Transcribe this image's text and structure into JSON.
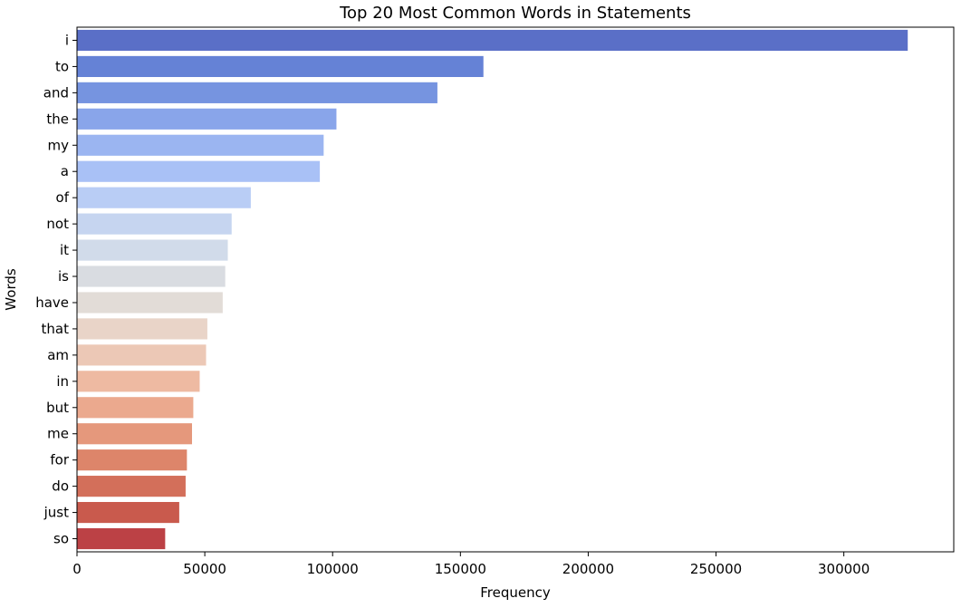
{
  "chart_data": {
    "type": "bar",
    "orientation": "horizontal",
    "title": "Top 20 Most Common Words in Statements",
    "xlabel": "Frequency",
    "ylabel": "Words",
    "categories": [
      "i",
      "to",
      "and",
      "the",
      "my",
      "a",
      "of",
      "not",
      "it",
      "is",
      "have",
      "that",
      "am",
      "in",
      "but",
      "me",
      "for",
      "do",
      "just",
      "so"
    ],
    "values": [
      325000,
      159000,
      141000,
      101500,
      96500,
      95000,
      68000,
      60500,
      59000,
      58000,
      57000,
      51000,
      50500,
      48000,
      45500,
      45000,
      43000,
      42500,
      40000,
      34500
    ],
    "colors": [
      "#5a6fc7",
      "#6582d6",
      "#7694e0",
      "#89a5ea",
      "#9bb5f1",
      "#a9c1f6",
      "#b9cdf5",
      "#c6d5f0",
      "#d1dbea",
      "#d9dce1",
      "#e2dcd7",
      "#e9d4c8",
      "#ecc8b6",
      "#eebaa2",
      "#eba98e",
      "#e5987c",
      "#dd856a",
      "#d36f5a",
      "#c95a4d",
      "#bc4145"
    ],
    "xlim": [
      0,
      343000
    ],
    "xticks": [
      0,
      50000,
      100000,
      150000,
      200000,
      250000,
      300000
    ],
    "xtick_labels": [
      "0",
      "50000",
      "100000",
      "150000",
      "200000",
      "250000",
      "300000"
    ],
    "grid": false,
    "legend": "none"
  }
}
